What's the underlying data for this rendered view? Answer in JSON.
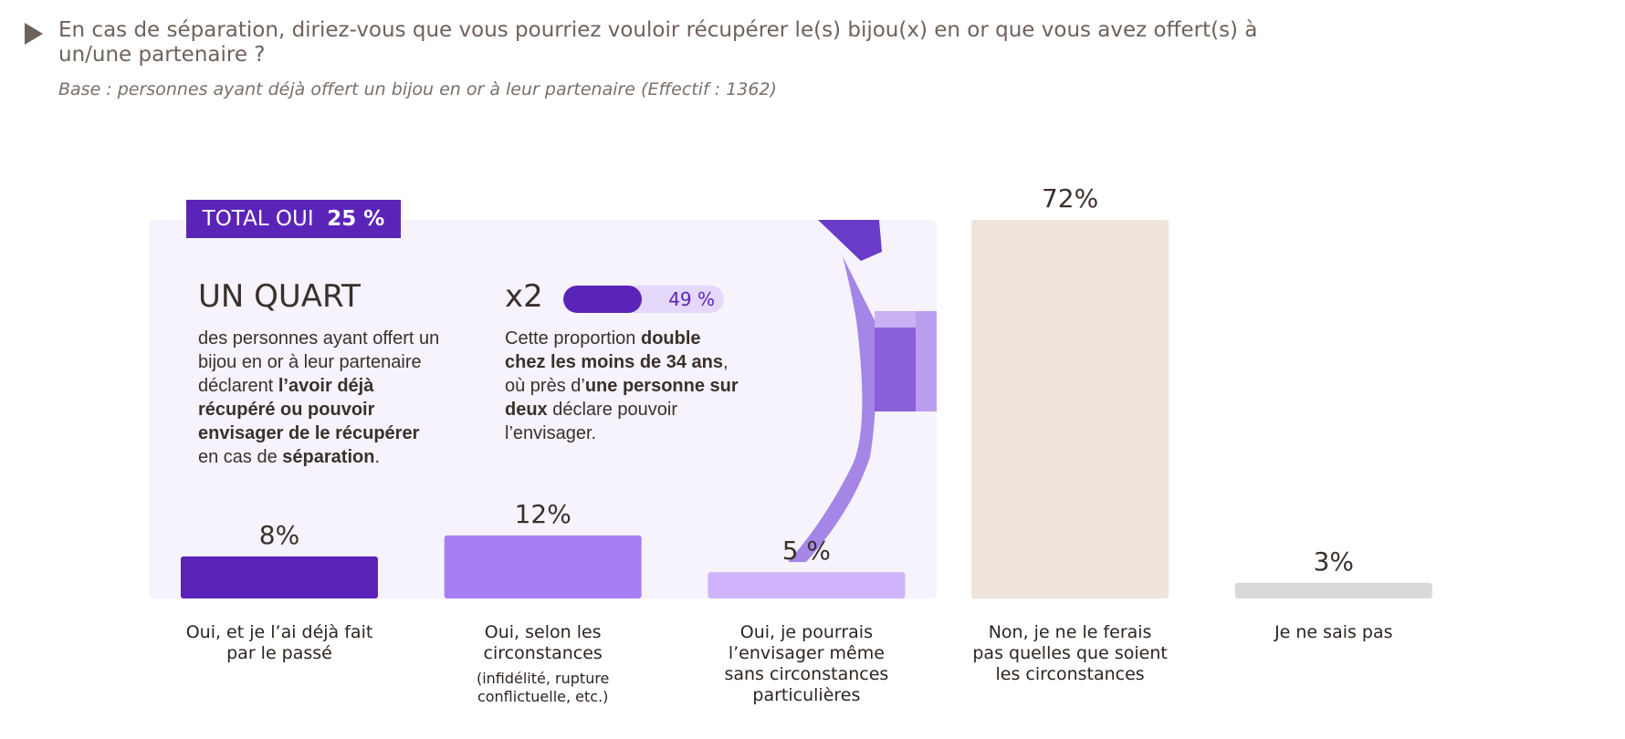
{
  "chart_data": {
    "type": "bar",
    "title": "En cas de séparation, diriez-vous que vous pourriez vouloir récupérer le(s) bijou(x) en or que vous avez offert(s) à un/une partenaire ?",
    "subtitle": "Base : personnes ayant déjà offert un bijou en or à leur partenaire (Effectif : 1362)",
    "categories": [
      "Oui, et je l’ai déjà fait par le passé",
      "Oui, selon les circonstances",
      "Oui, je pourrais l’envisager même sans circonstances particulières",
      "Non, je ne le ferais pas quelles que soient les circonstances",
      "Je ne sais pas"
    ],
    "category_notes": [
      null,
      "(infidélité, rupture conflictuelle, etc.)",
      null,
      null,
      null
    ],
    "values": [
      8,
      12,
      5,
      72,
      3
    ],
    "value_labels": [
      "8%",
      "12%",
      "5 %",
      "72%",
      "3%"
    ],
    "colors": [
      "#5b24b8",
      "#a97ef5",
      "#cfb4fb",
      "#efe5da",
      "#d9d9d9"
    ],
    "ylim": [
      0,
      72
    ],
    "callout": {
      "total_label": "TOTAL OUI",
      "total_value": 25,
      "total_value_label": "25 %",
      "headline": "UN QUART",
      "text": [
        {
          "text": "des personnes ayant offert un bijou en or à leur partenaire déclarent ",
          "bold": false
        },
        {
          "text": "l’avoir déjà récupéré ou pouvoir envisager de le récupérer",
          "bold": true
        },
        {
          "text": " en cas de ",
          "bold": false
        },
        {
          "text": "séparation",
          "bold": true
        },
        {
          "text": ".",
          "bold": false
        }
      ],
      "multiplier": "x2",
      "young_value": 49,
      "young_value_label": "49 %",
      "young_text": [
        {
          "text": "Cette proportion ",
          "bold": false
        },
        {
          "text": "double chez les moins de 34 ans",
          "bold": true
        },
        {
          "text": ", où près d’",
          "bold": false
        },
        {
          "text": "une personne sur deux",
          "bold": true
        },
        {
          "text": " déclare pouvoir l’envisager.",
          "bold": false
        }
      ]
    }
  }
}
